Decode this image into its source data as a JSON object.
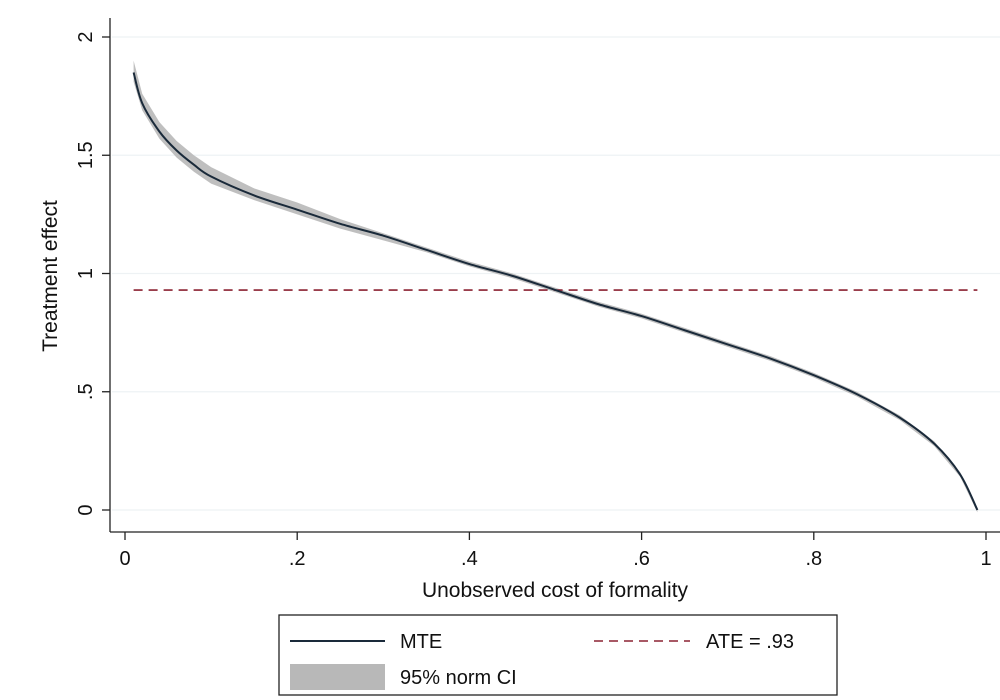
{
  "chart_data": {
    "type": "line",
    "xlabel": "Unobserved cost of formality",
    "ylabel": "Treatment effect",
    "xlim": [
      0,
      1
    ],
    "ylim": [
      0,
      2
    ],
    "x_ticks": [
      {
        "value": 0,
        "label": "0"
      },
      {
        "value": 0.2,
        "label": ".2"
      },
      {
        "value": 0.4,
        "label": ".4"
      },
      {
        "value": 0.6,
        "label": ".6"
      },
      {
        "value": 0.8,
        "label": ".8"
      },
      {
        "value": 1,
        "label": "1"
      }
    ],
    "y_ticks": [
      {
        "value": 0,
        "label": "0"
      },
      {
        "value": 0.5,
        "label": ".5"
      },
      {
        "value": 1,
        "label": "1"
      },
      {
        "value": 1.5,
        "label": "1.5"
      },
      {
        "value": 2,
        "label": "2"
      }
    ],
    "grid": "horizontal",
    "legend_position": "bottom",
    "series": [
      {
        "name": "MTE",
        "color": "#1a2a3a",
        "x": [
          0.01,
          0.02,
          0.04,
          0.06,
          0.08,
          0.1,
          0.15,
          0.2,
          0.25,
          0.3,
          0.35,
          0.4,
          0.45,
          0.5,
          0.55,
          0.6,
          0.65,
          0.7,
          0.75,
          0.8,
          0.85,
          0.9,
          0.94,
          0.97,
          0.99
        ],
        "y": [
          1.85,
          1.72,
          1.6,
          1.52,
          1.46,
          1.41,
          1.33,
          1.27,
          1.21,
          1.16,
          1.1,
          1.04,
          0.99,
          0.93,
          0.87,
          0.82,
          0.76,
          0.7,
          0.64,
          0.57,
          0.49,
          0.39,
          0.28,
          0.15,
          0.0
        ]
      },
      {
        "name": "95% norm CI",
        "type": "band",
        "color": "#b8b8b8",
        "x": [
          0.01,
          0.02,
          0.04,
          0.06,
          0.08,
          0.1,
          0.15,
          0.2,
          0.25,
          0.3,
          0.35,
          0.4,
          0.45,
          0.5,
          0.55,
          0.6,
          0.65,
          0.7,
          0.75,
          0.8,
          0.85,
          0.9,
          0.94,
          0.97,
          0.99
        ],
        "lower": [
          1.81,
          1.69,
          1.57,
          1.49,
          1.43,
          1.38,
          1.31,
          1.25,
          1.19,
          1.14,
          1.09,
          1.03,
          0.98,
          0.92,
          0.86,
          0.81,
          0.75,
          0.69,
          0.63,
          0.56,
          0.48,
          0.38,
          0.27,
          0.14,
          -0.01
        ],
        "upper": [
          1.9,
          1.76,
          1.64,
          1.56,
          1.5,
          1.45,
          1.36,
          1.3,
          1.23,
          1.17,
          1.11,
          1.05,
          1.0,
          0.94,
          0.88,
          0.83,
          0.77,
          0.71,
          0.65,
          0.58,
          0.5,
          0.4,
          0.29,
          0.16,
          0.01
        ]
      },
      {
        "name": "ATE = .93",
        "type": "hline",
        "color": "#8b2232",
        "y": 0.93,
        "x_range": [
          0.01,
          0.99
        ]
      }
    ],
    "legend": [
      {
        "label": "MTE",
        "kind": "line"
      },
      {
        "label": "ATE = .93",
        "kind": "dashed"
      },
      {
        "label": "95% norm CI",
        "kind": "band"
      }
    ]
  }
}
